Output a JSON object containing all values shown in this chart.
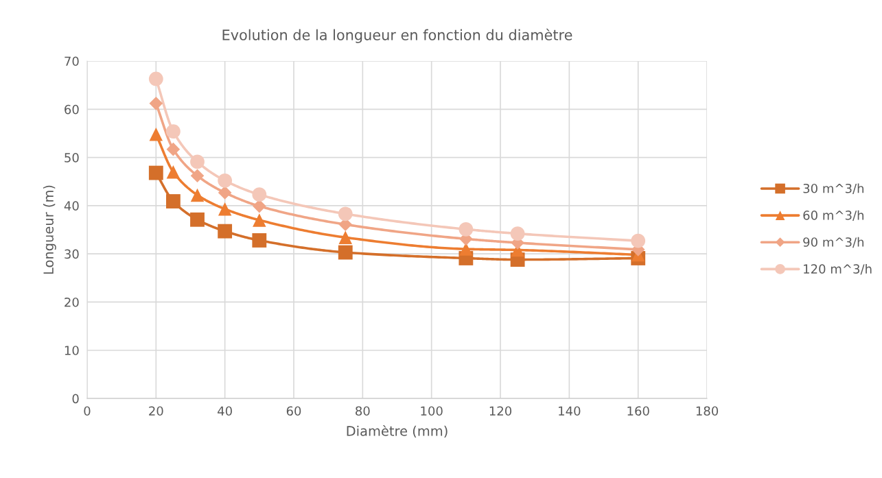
{
  "chart_data": {
    "type": "line",
    "title": "Evolution de la longueur en fonction du diamètre",
    "xlabel": "Diamètre (mm)",
    "ylabel": "Longueur (m)",
    "x": [
      20,
      25,
      32,
      40,
      50,
      75,
      110,
      125,
      160
    ],
    "series": [
      {
        "name": "30 m^3/h",
        "color": "#d46f2a",
        "marker": "square",
        "values": [
          46.8,
          40.9,
          37.1,
          34.7,
          32.8,
          30.3,
          29.1,
          28.8,
          29.1
        ]
      },
      {
        "name": "60 m^3/h",
        "color": "#ed7d31",
        "marker": "triangle",
        "values": [
          54.8,
          47.0,
          42.2,
          39.3,
          37.0,
          33.4,
          31.0,
          30.8,
          29.8
        ]
      },
      {
        "name": "90 m^3/h",
        "color": "#f0a586",
        "marker": "diamond",
        "values": [
          61.2,
          51.7,
          46.2,
          42.7,
          39.9,
          36.1,
          33.1,
          32.3,
          30.9
        ]
      },
      {
        "name": "120 m^3/h",
        "color": "#f4c7b8",
        "marker": "circle",
        "values": [
          66.3,
          55.4,
          49.1,
          45.2,
          42.3,
          38.3,
          35.1,
          34.2,
          32.7
        ]
      }
    ],
    "xlim": [
      0,
      180
    ],
    "xticks": [
      0,
      20,
      40,
      60,
      80,
      100,
      120,
      140,
      160,
      180
    ],
    "ylim": [
      0,
      70
    ],
    "yticks": [
      0,
      10,
      20,
      30,
      40,
      50,
      60,
      70
    ],
    "grid": true,
    "legend": "right",
    "line_style": "solid"
  }
}
